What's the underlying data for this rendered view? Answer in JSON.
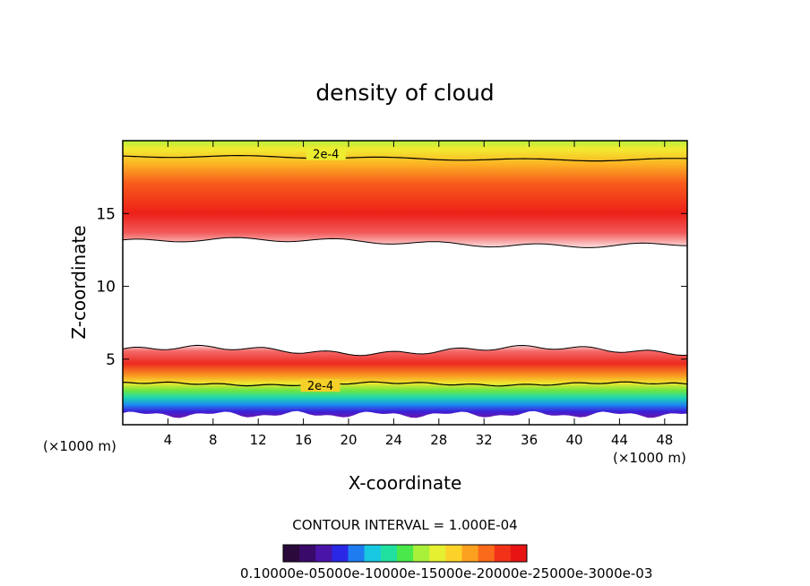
{
  "chart_data": {
    "type": "heatmap",
    "title": "density of cloud",
    "xlabel": "X-coordinate",
    "ylabel": "Z-coordinate",
    "x_unit_left": "(×1000 m)",
    "x_unit_right": "(×1000 m)",
    "xlim": [
      0,
      50
    ],
    "ylim": [
      0.5,
      20
    ],
    "x_ticks": [
      4,
      8,
      12,
      16,
      20,
      24,
      28,
      32,
      36,
      40,
      44,
      48
    ],
    "y_ticks": [
      5,
      10,
      15
    ],
    "contour_interval_text": "CONTOUR INTERVAL = 1.000E-04",
    "contour_labels": [
      {
        "text": "2e-4",
        "x": 18,
        "y": 19.1
      },
      {
        "text": "2e-4",
        "x": 17.5,
        "y": 3.2
      }
    ],
    "upper_layer": {
      "bottom": 13.0,
      "peak": 15.0,
      "top": 20.0,
      "contour_2e4": 18.8
    },
    "lower_layer": {
      "bottom": 1.2,
      "peak": 4.5,
      "top": 5.6,
      "contour_2e4": 3.3
    },
    "colorbar_text": "0.10000e-05000e-10000e-15000e-20000e-25000e-3000e-03",
    "colorbar_colors": [
      "#2a0a3a",
      "#3a0a6a",
      "#4a14a8",
      "#2a28e6",
      "#1e7cf0",
      "#18c8e0",
      "#20e0a0",
      "#4ae84a",
      "#a8f03a",
      "#e6f032",
      "#fcd22a",
      "#fca020",
      "#fa6a1a",
      "#f23218",
      "#e81414"
    ]
  }
}
